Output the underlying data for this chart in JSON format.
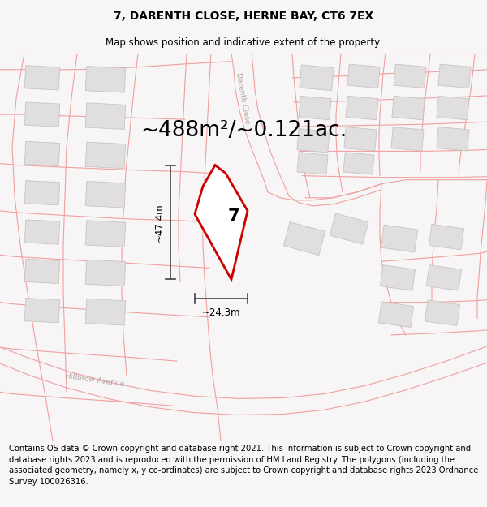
{
  "title": "7, DARENTH CLOSE, HERNE BAY, CT6 7EX",
  "subtitle": "Map shows position and indicative extent of the property.",
  "area_text": "~488m²/~0.121ac.",
  "width_label": "~24.3m",
  "height_label": "~47.4m",
  "property_number": "7",
  "footer_text": "Contains OS data © Crown copyright and database right 2021. This information is subject to Crown copyright and database rights 2023 and is reproduced with the permission of HM Land Registry. The polygons (including the associated geometry, namely x, y co-ordinates) are subject to Crown copyright and database rights 2023 Ordnance Survey 100026316.",
  "bg_color": "#f7f5f5",
  "map_bg_color": "#f7f5f5",
  "property_fill": "#ffffff",
  "property_edge": "#cc0000",
  "plot_line_color": "#f0a0a0",
  "building_fill": "#e0dede",
  "building_edge": "#c8c4c4",
  "road_label_color": "#b0a0a0",
  "dim_color": "#444444",
  "title_fontsize": 10,
  "subtitle_fontsize": 8.5,
  "area_fontsize": 19,
  "footer_fontsize": 7.2,
  "road_label_size": 6.5,
  "prop_label_size": 15
}
